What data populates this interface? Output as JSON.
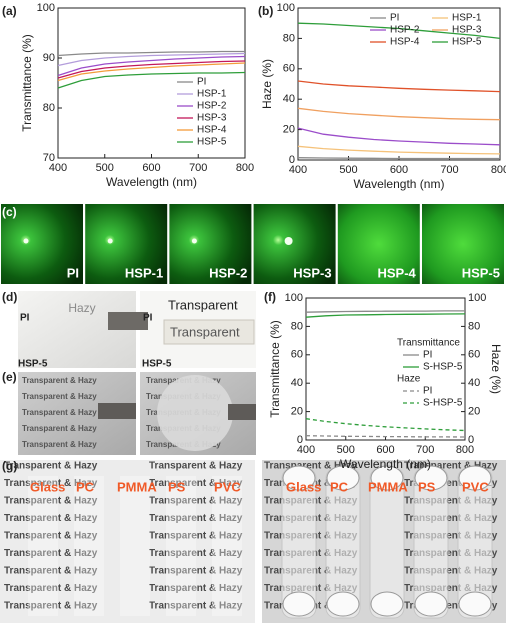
{
  "chart_data": [
    {
      "type": "line",
      "panel": "(a)",
      "xlabel": "Wavelength (nm)",
      "ylabel": "Transmittance (%)",
      "x": [
        400,
        450,
        500,
        550,
        600,
        650,
        700,
        750,
        800
      ],
      "xlim": [
        400,
        800
      ],
      "xticks": [
        400,
        500,
        600,
        700,
        800
      ],
      "ylim": [
        70,
        100
      ],
      "yticks": [
        70,
        80,
        90,
        100
      ],
      "legend": "lower right",
      "legend_columns": 1,
      "series": [
        {
          "name": "PI",
          "color": "#8a8a8a",
          "values": [
            90.5,
            90.8,
            91,
            91,
            91.1,
            91.2,
            91.2,
            91.3,
            91.3
          ]
        },
        {
          "name": "HSP-1",
          "color": "#b39ddb",
          "values": [
            88.5,
            89.5,
            90,
            90.3,
            90.5,
            90.6,
            90.7,
            90.8,
            90.9
          ]
        },
        {
          "name": "HSP-2",
          "color": "#9b4dca",
          "values": [
            86.5,
            88,
            88.8,
            89.2,
            89.5,
            89.8,
            90,
            90.2,
            90.3
          ]
        },
        {
          "name": "HSP-3",
          "color": "#c2185b",
          "values": [
            86,
            87.3,
            88,
            88.4,
            88.7,
            88.9,
            89.1,
            89.3,
            89.4
          ]
        },
        {
          "name": "HSP-4",
          "color": "#f39c3a",
          "values": [
            85.5,
            86.8,
            87.4,
            87.8,
            88.1,
            88.4,
            88.6,
            88.8,
            89
          ]
        },
        {
          "name": "HSP-5",
          "color": "#2e9e3a",
          "values": [
            84,
            85.5,
            86.3,
            86.6,
            86.8,
            86.9,
            87,
            87,
            87.1
          ]
        }
      ]
    },
    {
      "type": "line",
      "panel": "(b)",
      "xlabel": "Wavelength (nm)",
      "ylabel": "Haze (%)",
      "x": [
        400,
        450,
        500,
        550,
        600,
        650,
        700,
        750,
        800
      ],
      "xlim": [
        400,
        800
      ],
      "xticks": [
        400,
        500,
        600,
        700,
        800
      ],
      "ylim": [
        0,
        100
      ],
      "yticks": [
        0,
        20,
        40,
        60,
        80,
        100
      ],
      "legend": "upper right",
      "legend_columns": 2,
      "series": [
        {
          "name": "PI",
          "color": "#8a8a8a",
          "values": [
            1.5,
            1.3,
            1.2,
            1.1,
            1,
            1,
            1,
            1,
            1
          ]
        },
        {
          "name": "HSP-1",
          "color": "#f5c27a",
          "values": [
            9,
            7.5,
            6.5,
            5.8,
            5.2,
            4.8,
            4.5,
            4.2,
            4
          ]
        },
        {
          "name": "HSP-2",
          "color": "#9b4dca",
          "values": [
            21,
            17,
            15,
            13.5,
            12.5,
            11.8,
            11,
            10.5,
            10
          ]
        },
        {
          "name": "HSP-3",
          "color": "#f0a060",
          "values": [
            34,
            32,
            30.5,
            29.5,
            28.5,
            27.8,
            27.2,
            26.8,
            26.5
          ]
        },
        {
          "name": "HSP-4",
          "color": "#e0522a",
          "values": [
            52,
            50,
            48.8,
            48,
            47.2,
            46.5,
            46,
            45.5,
            45
          ]
        },
        {
          "name": "HSP-5",
          "color": "#2e9e3a",
          "values": [
            90,
            89.5,
            88.5,
            87.5,
            86.5,
            85,
            83.5,
            82,
            80
          ]
        }
      ]
    },
    {
      "type": "line",
      "panel": "(f)",
      "xlabel": "Wavelength (nm)",
      "ylabel": "Transmittance (%)",
      "y2label": "Haze (%)",
      "x": [
        400,
        450,
        500,
        550,
        600,
        650,
        700,
        750,
        800
      ],
      "xlim": [
        400,
        800
      ],
      "xticks": [
        400,
        500,
        600,
        700,
        800
      ],
      "ylim": [
        0,
        100
      ],
      "yticks": [
        0,
        20,
        40,
        60,
        80,
        100
      ],
      "y2lim": [
        0,
        100
      ],
      "y2ticks": [
        0,
        20,
        40,
        60,
        80,
        100
      ],
      "legend": "center right",
      "legend_columns": 1,
      "legend_titles": [
        "Transmittance",
        "Haze"
      ],
      "series": [
        {
          "name": "PI",
          "color": "#8a8a8a",
          "values": [
            90,
            90.3,
            90.5,
            90.6,
            90.7,
            90.8,
            90.8,
            90.9,
            90.9
          ]
        },
        {
          "name": "S-HSP-5",
          "color": "#2e9e3a",
          "values": [
            86.5,
            87.5,
            88,
            88.2,
            88.4,
            88.5,
            88.6,
            88.7,
            88.8
          ]
        },
        {
          "name": "PI",
          "color": "#8a8a8a",
          "dashed": true,
          "axis": "y2",
          "values": [
            3,
            2.8,
            2.6,
            2.5,
            2.4,
            2.3,
            2.2,
            2.2,
            2.1
          ]
        },
        {
          "name": "S-HSP-5",
          "color": "#2e9e3a",
          "dashed": true,
          "axis": "y2",
          "values": [
            15,
            13,
            11.5,
            10.3,
            9.3,
            8.5,
            7.8,
            7.2,
            6.7
          ]
        }
      ]
    }
  ],
  "photos": {
    "c": {
      "panel": "(c)",
      "labels": [
        "PI",
        "HSP-1",
        "HSP-2",
        "HSP-3",
        "HSP-4",
        "HSP-5"
      ]
    },
    "d": {
      "panel": "(d)",
      "sample_top": "PI",
      "sample_bottom": "HSP-5",
      "left_text": "Hazy",
      "right_text": "Transparent"
    },
    "e": {
      "panel": "(e)",
      "text": "Transparent & Hazy"
    },
    "g": {
      "panel": "(g)",
      "text": "Transparent & Hazy",
      "samples": [
        "Glass",
        "PC",
        "PMMA",
        "PS",
        "PVC"
      ]
    }
  }
}
